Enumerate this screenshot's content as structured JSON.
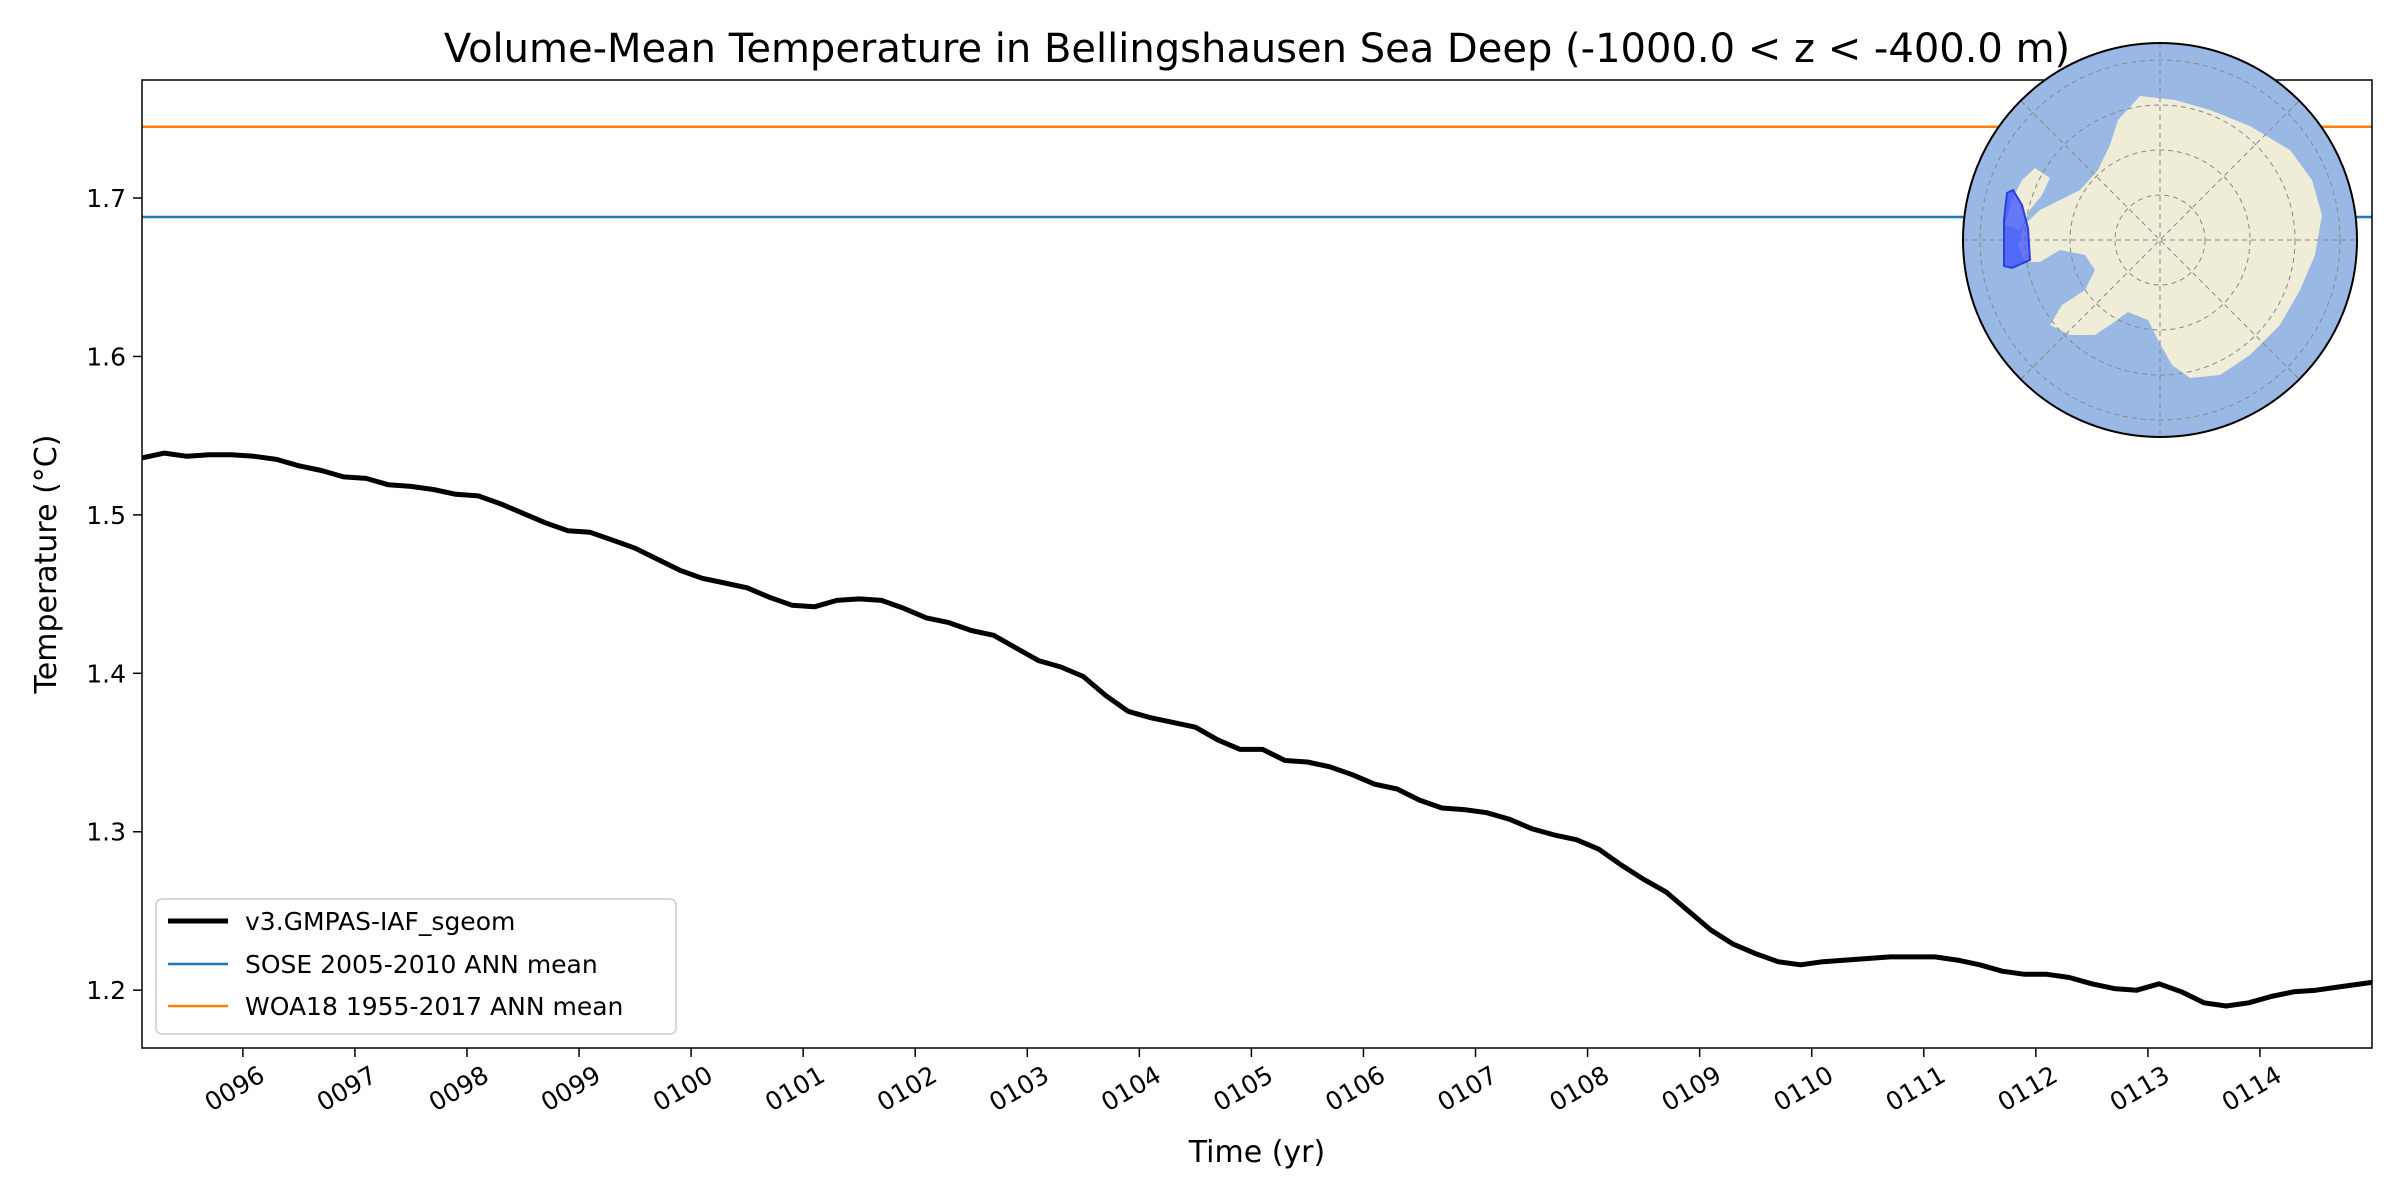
{
  "chart_data": {
    "type": "line",
    "title": "Volume-Mean Temperature in Bellingshausen Sea Deep (-1000.0 < z < -400.0 m)",
    "xlabel": "Time (yr)",
    "ylabel": "Temperature (°C)",
    "xlim": [
      95.1,
      115.0
    ],
    "ylim": [
      1.1635,
      1.7745
    ],
    "x_ticks": [
      96,
      97,
      98,
      99,
      100,
      101,
      102,
      103,
      104,
      105,
      106,
      107,
      108,
      109,
      110,
      111,
      112,
      113,
      114
    ],
    "x_tick_labels": [
      "0096",
      "0097",
      "0098",
      "0099",
      "0100",
      "0101",
      "0102",
      "0103",
      "0104",
      "0105",
      "0106",
      "0107",
      "0108",
      "0109",
      "0110",
      "0111",
      "0112",
      "0113",
      "0114"
    ],
    "y_ticks": [
      1.2,
      1.3,
      1.4,
      1.5,
      1.6,
      1.7
    ],
    "y_tick_labels": [
      "1.2",
      "1.3",
      "1.4",
      "1.5",
      "1.6",
      "1.7"
    ],
    "grid": false,
    "legend_position": "lower-left",
    "series": [
      {
        "name": "v3.GMPAS-IAF_sgeom",
        "color": "#000000",
        "style": "thick",
        "x": [
          95.1,
          95.3,
          95.5,
          95.7,
          95.9,
          96.1,
          96.3,
          96.5,
          96.7,
          96.9,
          97.1,
          97.3,
          97.5,
          97.7,
          97.9,
          98.1,
          98.3,
          98.5,
          98.7,
          98.9,
          99.1,
          99.3,
          99.5,
          99.7,
          99.9,
          100.1,
          100.3,
          100.5,
          100.7,
          100.9,
          101.1,
          101.3,
          101.5,
          101.7,
          101.9,
          102.1,
          102.3,
          102.5,
          102.7,
          102.9,
          103.1,
          103.3,
          103.5,
          103.7,
          103.9,
          104.1,
          104.3,
          104.5,
          104.7,
          104.9,
          105.1,
          105.3,
          105.5,
          105.7,
          105.9,
          106.1,
          106.3,
          106.5,
          106.7,
          106.9,
          107.1,
          107.3,
          107.5,
          107.7,
          107.9,
          108.1,
          108.3,
          108.5,
          108.7,
          108.9,
          109.1,
          109.3,
          109.5,
          109.7,
          109.9,
          110.1,
          110.3,
          110.5,
          110.7,
          110.9,
          111.1,
          111.3,
          111.5,
          111.7,
          111.9,
          112.1,
          112.3,
          112.5,
          112.7,
          112.9,
          113.1,
          113.3,
          113.5,
          113.7,
          113.9,
          114.1,
          114.3,
          114.5,
          114.7,
          115.0
        ],
        "y": [
          1.536,
          1.539,
          1.537,
          1.538,
          1.538,
          1.537,
          1.535,
          1.531,
          1.528,
          1.524,
          1.523,
          1.519,
          1.518,
          1.516,
          1.513,
          1.512,
          1.507,
          1.501,
          1.495,
          1.49,
          1.489,
          1.484,
          1.479,
          1.472,
          1.465,
          1.46,
          1.457,
          1.454,
          1.448,
          1.443,
          1.442,
          1.446,
          1.447,
          1.446,
          1.441,
          1.435,
          1.432,
          1.427,
          1.424,
          1.416,
          1.408,
          1.404,
          1.398,
          1.386,
          1.376,
          1.372,
          1.369,
          1.366,
          1.358,
          1.352,
          1.352,
          1.345,
          1.344,
          1.341,
          1.336,
          1.33,
          1.327,
          1.32,
          1.315,
          1.314,
          1.312,
          1.308,
          1.302,
          1.298,
          1.295,
          1.289,
          1.279,
          1.27,
          1.262,
          1.25,
          1.238,
          1.229,
          1.223,
          1.218,
          1.216,
          1.218,
          1.219,
          1.22,
          1.221,
          1.221,
          1.221,
          1.219,
          1.216,
          1.212,
          1.21,
          1.21,
          1.208,
          1.204,
          1.201,
          1.2,
          1.204,
          1.199,
          1.192,
          1.19,
          1.192,
          1.196,
          1.199,
          1.2,
          1.202,
          1.205
        ]
      },
      {
        "name": "SOSE 2005-2010 ANN mean",
        "color": "#1f77b4",
        "style": "hline",
        "value": 1.688
      },
      {
        "name": "WOA18 1955-2017 ANN mean",
        "color": "#ff7f0e",
        "style": "hline",
        "value": 1.745
      }
    ]
  },
  "inset_map": {
    "name": "Antarctica region map",
    "ocean_color": "#99b8e4",
    "land_color": "#efecd8",
    "region_color": "#3a50ff"
  }
}
